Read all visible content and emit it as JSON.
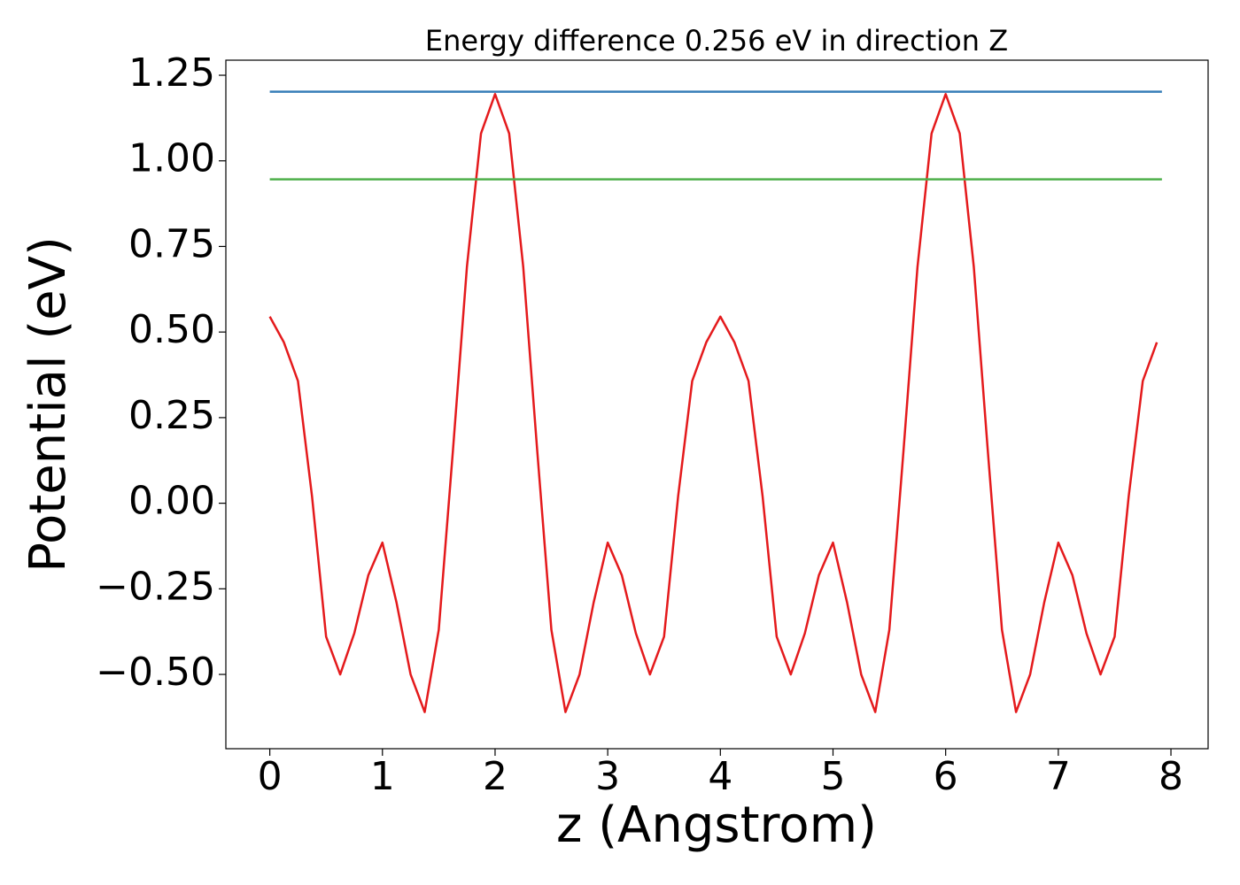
{
  "chart_data": {
    "type": "line",
    "title": "Energy difference 0.256 eV in direction Z",
    "xlabel": "z (Angstrom)",
    "ylabel": "Potential (eV)",
    "xlim": [
      -0.39,
      8.33
    ],
    "ylim": [
      -0.717,
      1.294
    ],
    "xticks": [
      0,
      1,
      2,
      3,
      4,
      5,
      6,
      7,
      8
    ],
    "yticks": [
      {
        "value": -0.5,
        "label": "−0.50"
      },
      {
        "value": -0.25,
        "label": "−0.25"
      },
      {
        "value": 0,
        "label": "0.00"
      },
      {
        "value": 0.25,
        "label": "0.25"
      },
      {
        "value": 0.5,
        "label": "0.50"
      },
      {
        "value": 0.75,
        "label": "0.75"
      },
      {
        "value": 1,
        "label": "1.00"
      },
      {
        "value": 1.25,
        "label": "1.25"
      }
    ],
    "grid": false,
    "series": [
      {
        "color": "#e41a1c",
        "x": [
          0,
          0.125,
          0.25,
          0.375,
          0.5,
          0.625,
          0.75,
          0.875,
          1,
          1.125,
          1.25,
          1.375,
          1.5,
          1.625,
          1.75,
          1.875,
          2,
          2.125,
          2.25,
          2.375,
          2.5,
          2.625,
          2.75,
          2.875,
          3,
          3.125,
          3.25,
          3.375,
          3.5,
          3.625,
          3.75,
          3.875,
          4,
          4.125,
          4.25,
          4.375,
          4.5,
          4.625,
          4.75,
          4.875,
          5,
          5.125,
          5.25,
          5.375,
          5.5,
          5.625,
          5.75,
          5.875,
          6,
          6.125,
          6.25,
          6.375,
          6.5,
          6.625,
          6.75,
          6.875,
          7,
          7.125,
          7.25,
          7.375,
          7.5,
          7.625,
          7.75,
          7.875
        ],
        "values": [
          0.545,
          0.47,
          0.357,
          0.02,
          -0.39,
          -0.5,
          -0.38,
          -0.21,
          -0.115,
          -0.29,
          -0.5,
          -0.61,
          -0.37,
          0.15,
          0.69,
          1.08,
          1.195,
          1.08,
          0.69,
          0.15,
          -0.37,
          -0.61,
          -0.5,
          -0.29,
          -0.115,
          -0.21,
          -0.38,
          -0.5,
          -0.39,
          0.02,
          0.357,
          0.47,
          0.545,
          0.47,
          0.357,
          0.02,
          -0.39,
          -0.5,
          -0.38,
          -0.21,
          -0.115,
          -0.29,
          -0.5,
          -0.61,
          -0.37,
          0.15,
          0.69,
          1.08,
          1.195,
          1.08,
          0.69,
          0.15,
          -0.37,
          -0.61,
          -0.5,
          -0.29,
          -0.115,
          -0.21,
          -0.38,
          -0.5,
          -0.39,
          0.02,
          0.357,
          0.47
        ]
      },
      {
        "color": "#377eb8",
        "x": [
          0,
          7.92
        ],
        "values": [
          1.202,
          1.202
        ]
      },
      {
        "color": "#4daf4a",
        "x": [
          0,
          7.92
        ],
        "values": [
          0.946,
          0.946
        ]
      }
    ]
  }
}
